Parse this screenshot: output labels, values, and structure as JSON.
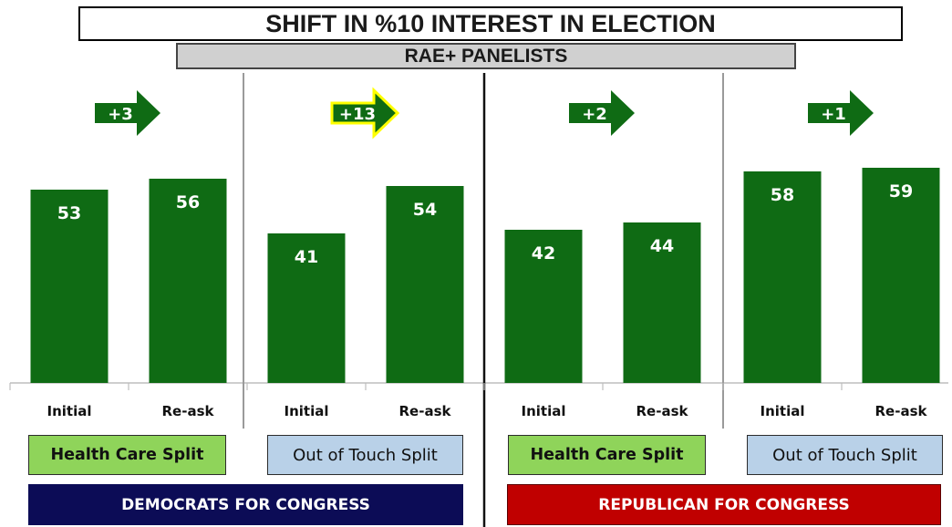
{
  "header": {
    "title": "SHIFT IN %10 INTEREST IN ELECTION",
    "subtitle": "RAE+ PANELISTS"
  },
  "chart_data": {
    "type": "bar",
    "title": "SHIFT IN %10 INTEREST IN ELECTION",
    "subtitle": "RAE+ PANELISTS",
    "ylim": [
      0,
      70
    ],
    "bar_color": "#0f6b14",
    "arrow_color": "#0f6b14",
    "highlight_color": "#ffff00",
    "groups": [
      {
        "split": "Health Care Split",
        "party": "DEMOCRATS FOR CONGRESS",
        "categories": [
          "Initial",
          "Re-ask"
        ],
        "values": [
          53,
          56
        ],
        "shift": "+3",
        "highlight": false
      },
      {
        "split": "Out of Touch Split",
        "party": "DEMOCRATS FOR CONGRESS",
        "categories": [
          "Initial",
          "Re-ask"
        ],
        "values": [
          41,
          54
        ],
        "shift": "+13",
        "highlight": true
      },
      {
        "split": "Health Care Split",
        "party": "REPUBLICAN FOR CONGRESS",
        "categories": [
          "Initial",
          "Re-ask"
        ],
        "values": [
          42,
          44
        ],
        "shift": "+2",
        "highlight": false
      },
      {
        "split": "Out of Touch Split",
        "party": "REPUBLICAN FOR CONGRESS",
        "categories": [
          "Initial",
          "Re-ask"
        ],
        "values": [
          58,
          59
        ],
        "shift": "+1",
        "highlight": false
      }
    ]
  },
  "splits": [
    {
      "label": "Health Care Split",
      "color": "#8fd45a"
    },
    {
      "label": "Out of Touch Split",
      "color": "#b9d1e8"
    },
    {
      "label": "Health Care Split",
      "color": "#8fd45a"
    },
    {
      "label": "Out of Touch Split",
      "color": "#b9d1e8"
    }
  ],
  "parties": {
    "democrats": {
      "label": "DEMOCRATS FOR CONGRESS",
      "color": "#0c0c56"
    },
    "republicans": {
      "label": "REPUBLICAN FOR CONGRESS",
      "color": "#c00000"
    }
  }
}
